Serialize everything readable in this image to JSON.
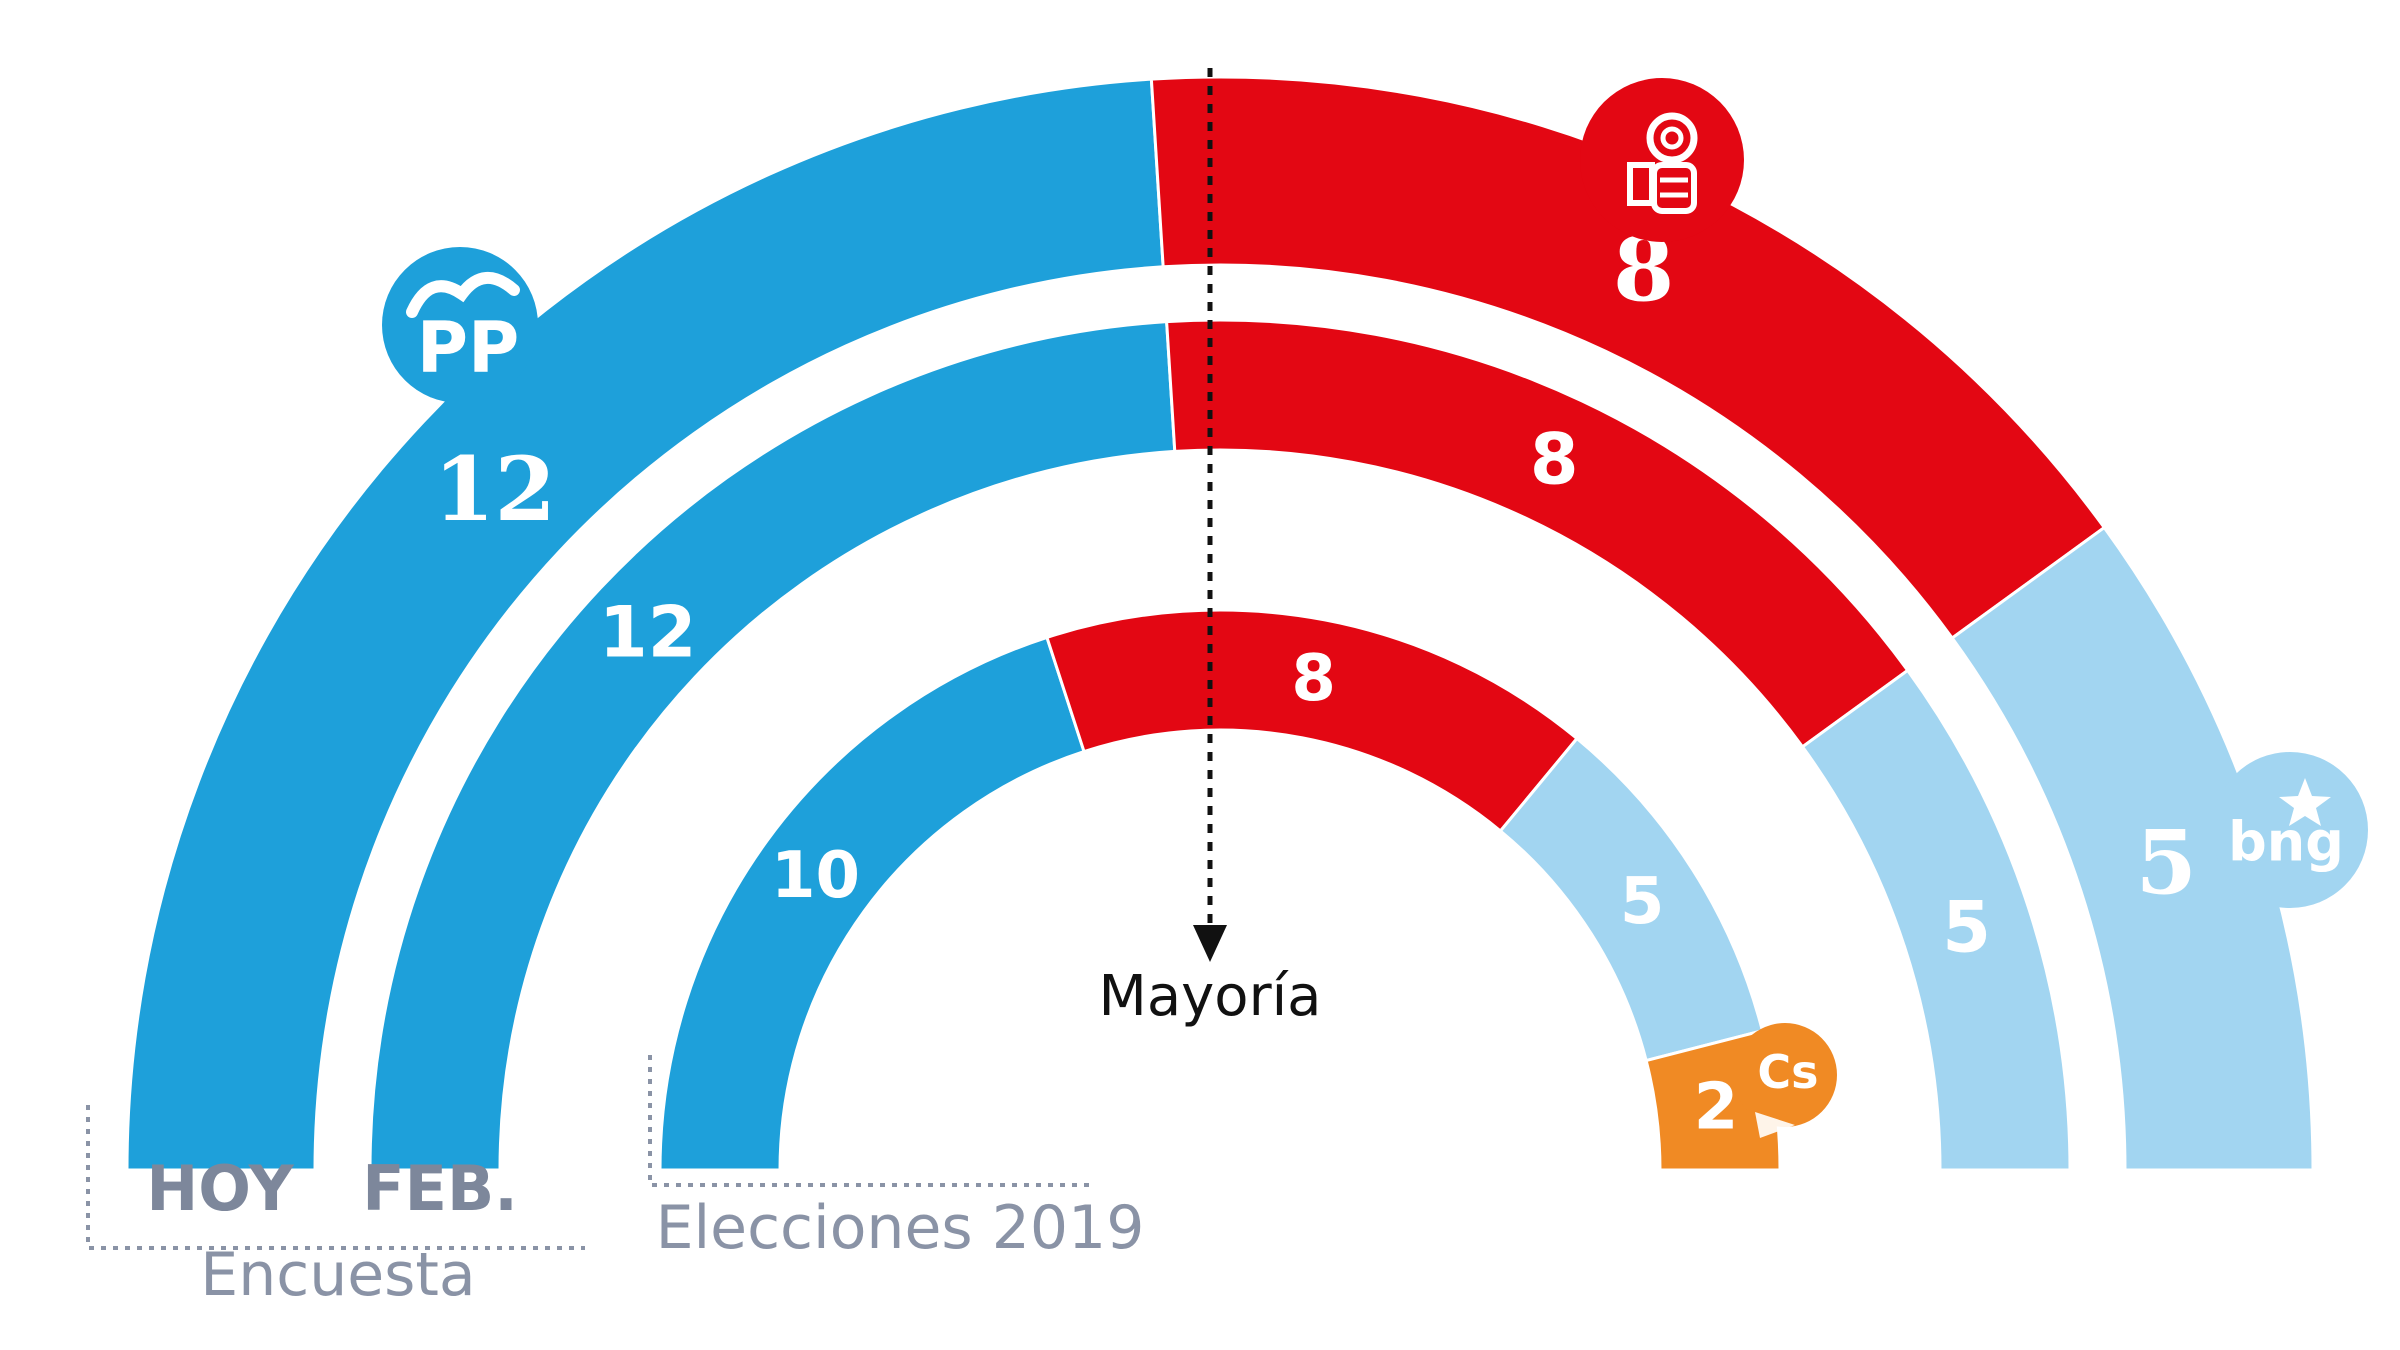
{
  "chart_data": {
    "type": "parliament-semicircle",
    "rings": [
      {
        "label": "HOY",
        "seats": [
          {
            "party": "PP",
            "value": 12,
            "color": "#1ea0da"
          },
          {
            "party": "PSOE",
            "value": 8,
            "color": "#e30713"
          },
          {
            "party": "BNG",
            "value": 5,
            "color": "#a2d5f1"
          }
        ]
      },
      {
        "label": "FEB.",
        "seats": [
          {
            "party": "PP",
            "value": 12,
            "color": "#1ea0da"
          },
          {
            "party": "PSOE",
            "value": 8,
            "color": "#e30713"
          },
          {
            "party": "BNG",
            "value": 5,
            "color": "#a2d5f1"
          }
        ]
      },
      {
        "label": "Elecciones 2019",
        "seats": [
          {
            "party": "PP",
            "value": 10,
            "color": "#1ea0da"
          },
          {
            "party": "PSOE",
            "value": 8,
            "color": "#e30713"
          },
          {
            "party": "BNG",
            "value": 5,
            "color": "#a2d5f1"
          },
          {
            "party": "Cs",
            "value": 2,
            "color": "#f08a24"
          }
        ]
      }
    ],
    "majority_label": "Mayoría",
    "survey_label": "Encuesta",
    "logos": [
      {
        "party": "PP",
        "text": "PP",
        "color": "#1ea0da",
        "icon": "pp-logo-icon"
      },
      {
        "party": "PSOE",
        "text": "",
        "color": "#e30713",
        "icon": "psoe-rose-icon"
      },
      {
        "party": "BNG",
        "text": "bng",
        "color": "#a2d5f1",
        "icon": "bng-star-icon"
      },
      {
        "party": "Cs",
        "text": "Cs",
        "color": "#f08a24",
        "icon": "cs-logo-icon"
      }
    ]
  }
}
